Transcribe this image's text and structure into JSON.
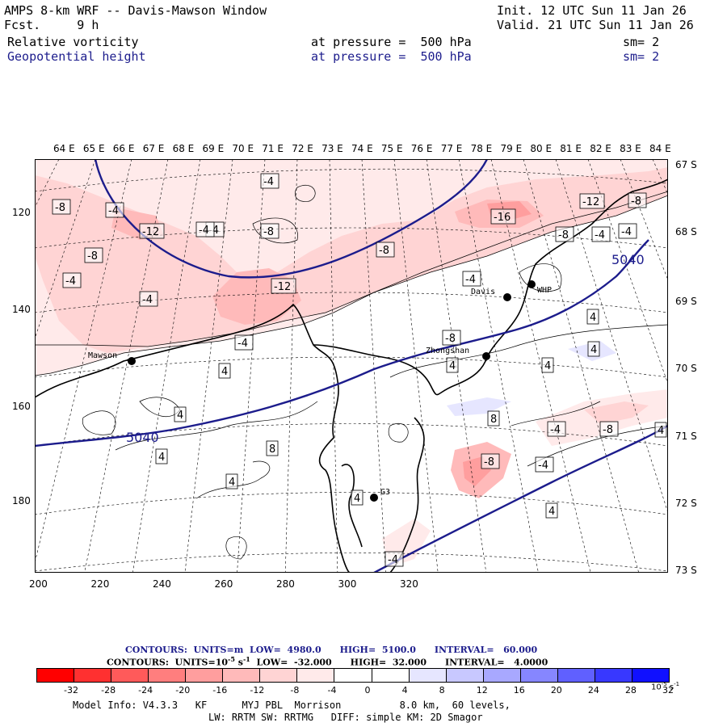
{
  "header": {
    "title": "AMPS 8-km WRF -- Davis-Mawson Window",
    "fcst": "Fcst.     9 h",
    "init": "Init. 12 UTC Sun 11 Jan 26",
    "valid": "Valid. 21 UTC Sun 11 Jan 26",
    "field1": {
      "name": "Relative vorticity",
      "level": "at pressure =  500 hPa",
      "sm": "sm= 2"
    },
    "field2": {
      "name": "Geopotential height",
      "level": "at pressure =  500 hPa",
      "sm": "sm= 2"
    }
  },
  "map": {
    "lon_labels": [
      "64 E",
      "65 E",
      "66 E",
      "67 E",
      "68 E",
      "69 E",
      "70 E",
      "71 E",
      "72 E",
      "73 E",
      "74 E",
      "75 E",
      "76 E",
      "77 E",
      "78 E",
      "79 E",
      "80 E",
      "81 E",
      "82 E",
      "83 E",
      "84 E"
    ],
    "lat_labels": [
      "67 S",
      "68 S",
      "69 S",
      "70 S",
      "71 S",
      "72 S",
      "73 S"
    ],
    "x_ticks": [
      "200",
      "220",
      "240",
      "260",
      "280",
      "300",
      "320"
    ],
    "y_ticks": [
      "120",
      "140",
      "160",
      "180"
    ],
    "stations": [
      {
        "name": "Mawson"
      },
      {
        "name": "Davis"
      },
      {
        "name": "WHP"
      },
      {
        "name": "Zhongshan"
      },
      {
        "name": "G3"
      }
    ],
    "height_contours": [
      "5040",
      "5040"
    ],
    "vort_labels": [
      "-8",
      "-8",
      "-12",
      "-4",
      "-4",
      "-4",
      "-8",
      "-16",
      "-12",
      "-8",
      "-8",
      "-4",
      "-4",
      "-8",
      "-12",
      "-4",
      "-4",
      "-8",
      "-4",
      "-4",
      "4",
      "4",
      "8",
      "4",
      "4",
      "4",
      "8",
      "-4",
      "-8",
      "4",
      "4",
      "4",
      "4",
      "-8",
      "-4",
      "4",
      "-4",
      "-4",
      "4"
    ]
  },
  "footer": {
    "contours1": "CONTOURS:  UNITS=m  LOW=  4980.0      HIGH=  5100.0      INTERVAL=   60.000",
    "contours2_pre": "CONTOURS:  UNITS=10",
    "contours2_exp": "-5",
    "contours2_mid": " s",
    "contours2_exp2": "-1",
    "contours2_post": "  LOW=  -32.000      HIGH=  32.000      INTERVAL=   4.0000",
    "colorbar_ticks": [
      "-32",
      "-28",
      "-24",
      "-20",
      "-16",
      "-12",
      "-8",
      "-4",
      "0",
      "4",
      "8",
      "12",
      "16",
      "20",
      "24",
      "28",
      "32"
    ],
    "colorbar_unit": "10",
    "colorbar_unit_exp": "-5",
    "colorbar_unit_s": " s",
    "colorbar_unit_exp2": "-1",
    "colorbar_colors": [
      "#ff0000",
      "#ff3030",
      "#ff5a5a",
      "#ff7e7e",
      "#ff9e9e",
      "#ffbaba",
      "#ffd4d4",
      "#ffeaea",
      "#ffffff",
      "#ffffff",
      "#e6e6ff",
      "#c8c8ff",
      "#a8a8ff",
      "#8686ff",
      "#6060ff",
      "#3838ff",
      "#1010ff"
    ],
    "model_info": "Model Info: V4.3.3   KF      MYJ PBL  Morrison          8.0 km,  60 levels,",
    "model_info2": "LW: RRTM SW: RRTMG   DIFF: simple KM: 2D Smagor"
  }
}
